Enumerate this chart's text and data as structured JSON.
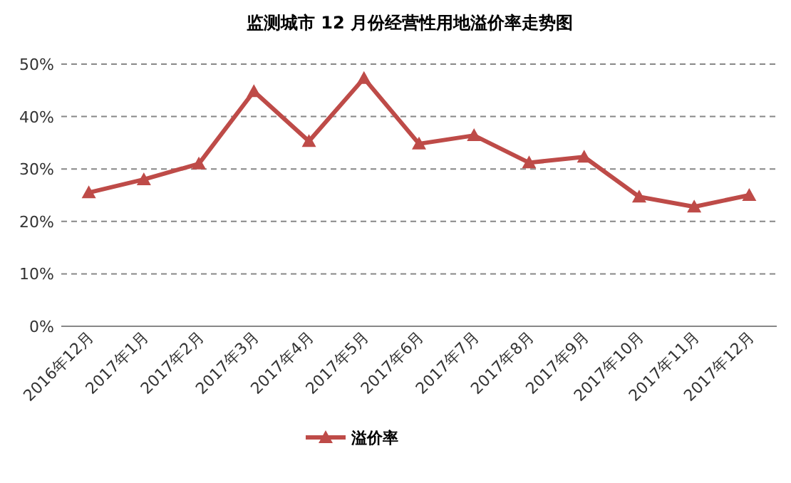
{
  "chart_data": {
    "type": "line",
    "title": "监测城市 12 月份经营性用地溢价率走势图",
    "categories": [
      "2016年12月",
      "2017年1月",
      "2017年2月",
      "2017年3月",
      "2017年4月",
      "2017年5月",
      "2017年6月",
      "2017年7月",
      "2017年8月",
      "2017年9月",
      "2017年10月",
      "2017年11月",
      "2017年12月"
    ],
    "series": [
      {
        "name": "溢价率",
        "color": "#be4b48",
        "values": [
          25.5,
          28.0,
          31.0,
          44.8,
          35.3,
          47.3,
          34.8,
          36.4,
          31.2,
          32.3,
          24.7,
          22.8,
          25.0
        ]
      }
    ],
    "ylim": [
      0,
      50
    ],
    "yticks": [
      {
        "value": 0,
        "label": "0%"
      },
      {
        "value": 10,
        "label": "10%"
      },
      {
        "value": 20,
        "label": "20%"
      },
      {
        "value": 30,
        "label": "30%"
      },
      {
        "value": 40,
        "label": "40%"
      },
      {
        "value": 50,
        "label": "50%"
      }
    ],
    "grid": "y",
    "legend": "bottom",
    "marker": "triangle",
    "line_style": "solid"
  }
}
